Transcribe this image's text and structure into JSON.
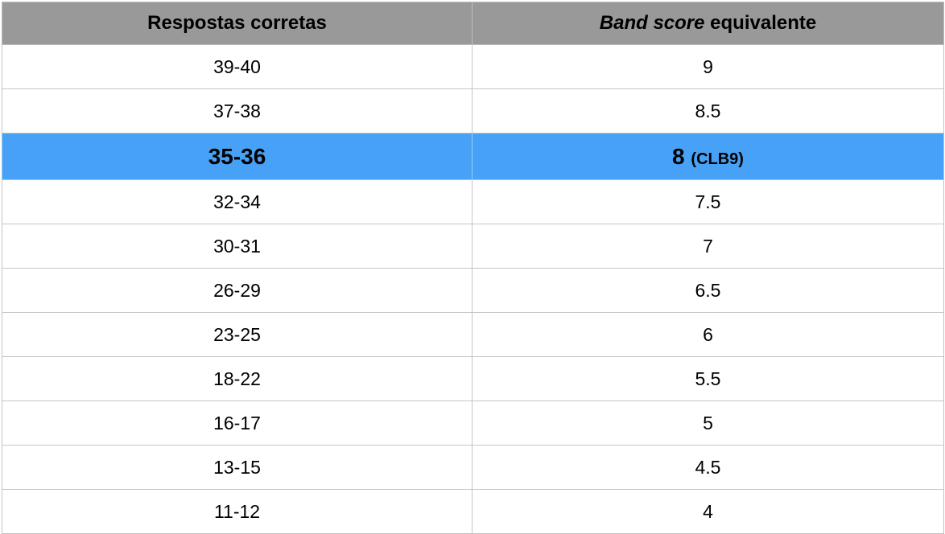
{
  "header": {
    "col1": "Respostas corretas",
    "col2_italic": "Band score",
    "col2_rest": " equivalente"
  },
  "rows": [
    {
      "answers": "39-40",
      "band": "9"
    },
    {
      "answers": "37-38",
      "band": "8.5"
    },
    {
      "answers": "35-36",
      "band": "8",
      "note": "(CLB9)",
      "highlighted": true
    },
    {
      "answers": "32-34",
      "band": "7.5"
    },
    {
      "answers": "30-31",
      "band": "7"
    },
    {
      "answers": "26-29",
      "band": "6.5"
    },
    {
      "answers": "23-25",
      "band": "6"
    },
    {
      "answers": "18-22",
      "band": "5.5"
    },
    {
      "answers": "16-17",
      "band": "5"
    },
    {
      "answers": "13-15",
      "band": "4.5"
    },
    {
      "answers": "11-12",
      "band": "4"
    }
  ],
  "colors": {
    "header_bg": "#999999",
    "highlight_bg": "#47a2f7",
    "grid_line": "#c4c4c4"
  }
}
